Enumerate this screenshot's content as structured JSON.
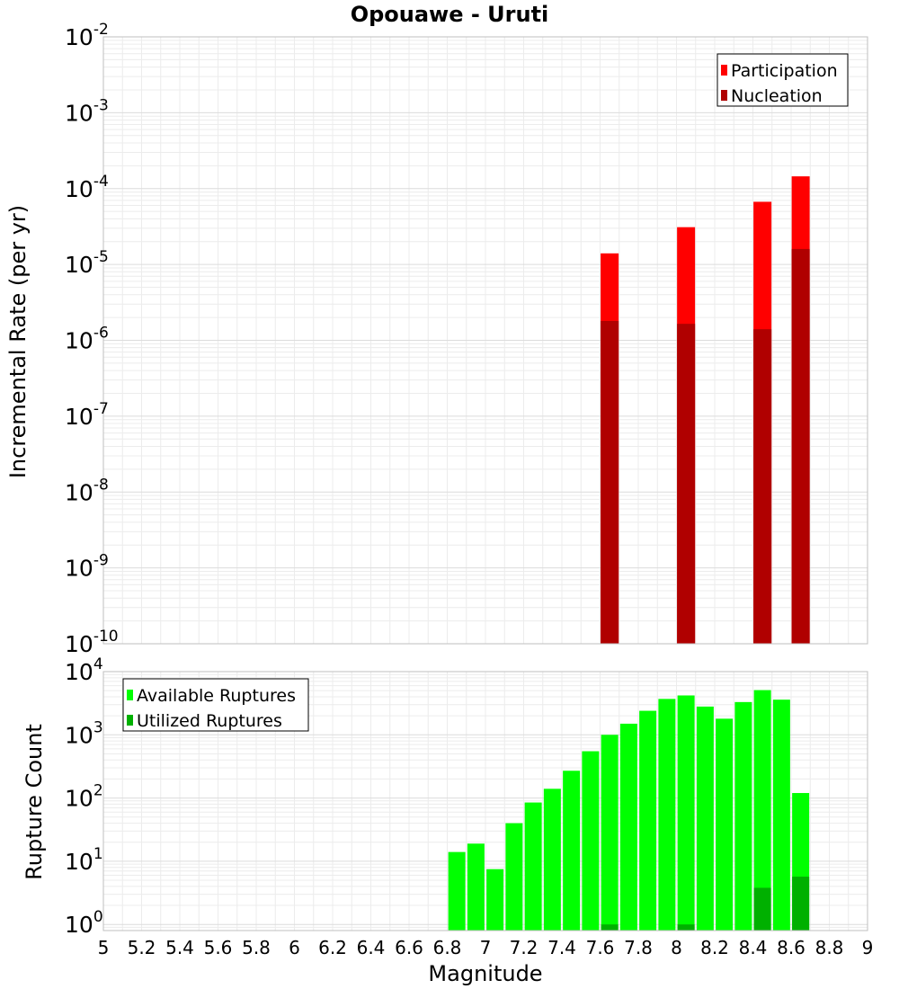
{
  "chart_data": [
    {
      "type": "bar",
      "title": "Opouawe - Uruti",
      "xlabel": "",
      "ylabel": "Incremental Rate (per yr)",
      "y_scale": "log",
      "ylim": [
        1e-10,
        0.01
      ],
      "xlim": [
        5,
        9
      ],
      "grid": true,
      "legend_position": "top-right",
      "y_ticks": [
        {
          "base": "10",
          "exp": "-10"
        },
        {
          "base": "10",
          "exp": "-9"
        },
        {
          "base": "10",
          "exp": "-8"
        },
        {
          "base": "10",
          "exp": "-7"
        },
        {
          "base": "10",
          "exp": "-6"
        },
        {
          "base": "10",
          "exp": "-5"
        },
        {
          "base": "10",
          "exp": "-4"
        },
        {
          "base": "10",
          "exp": "-3"
        },
        {
          "base": "10",
          "exp": "-2"
        }
      ],
      "x": [
        7.65,
        8.05,
        8.45,
        8.65
      ],
      "series": [
        {
          "name": "Participation",
          "color": "#ff0000",
          "values": [
            1.4e-05,
            3.1e-05,
            6.7e-05,
            0.000145
          ]
        },
        {
          "name": "Nucleation",
          "color": "#b00000",
          "values": [
            1.8e-06,
            1.65e-06,
            1.4e-06,
            1.6e-05
          ]
        }
      ]
    },
    {
      "type": "bar",
      "title": "",
      "xlabel": "Magnitude",
      "ylabel": "Rupture Count",
      "y_scale": "log",
      "ylim": [
        0.8,
        10000
      ],
      "xlim": [
        5,
        9
      ],
      "grid": true,
      "legend_position": "top-left",
      "y_ticks": [
        {
          "base": "10",
          "exp": "0"
        },
        {
          "base": "10",
          "exp": "1"
        },
        {
          "base": "10",
          "exp": "2"
        },
        {
          "base": "10",
          "exp": "3"
        },
        {
          "base": "10",
          "exp": "4"
        }
      ],
      "x_ticks": [
        "5",
        "5.2",
        "5.4",
        "5.6",
        "5.8",
        "6",
        "6.2",
        "6.4",
        "6.6",
        "6.8",
        "7",
        "7.2",
        "7.4",
        "7.6",
        "7.8",
        "8",
        "8.2",
        "8.4",
        "8.6",
        "8.8",
        "9"
      ],
      "x": [
        6.85,
        6.95,
        7.05,
        7.15,
        7.25,
        7.35,
        7.45,
        7.55,
        7.65,
        7.75,
        7.85,
        7.95,
        8.05,
        8.15,
        8.25,
        8.35,
        8.45,
        8.55,
        8.65
      ],
      "series": [
        {
          "name": "Available Ruptures",
          "color": "#00ff00",
          "values": [
            14,
            19,
            7.5,
            40,
            85,
            140,
            270,
            550,
            1000,
            1500,
            2400,
            3700,
            4200,
            2800,
            1800,
            3300,
            5100,
            3600,
            120
          ]
        },
        {
          "name": "Utilized Ruptures",
          "color": "#00b000",
          "values": [
            0,
            0,
            0,
            0,
            0,
            0,
            0,
            0,
            1,
            0,
            0,
            0,
            1,
            0,
            0,
            0,
            3.8,
            0,
            5.7
          ]
        }
      ]
    }
  ]
}
